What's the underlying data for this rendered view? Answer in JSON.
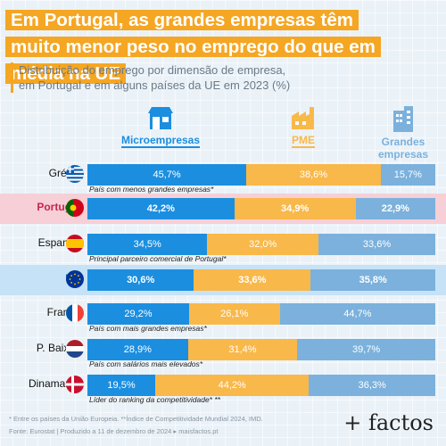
{
  "title": "Em Portugal, as grandes empresas têm muito menor peso no emprego do que em média na UE",
  "subtitle_lines": [
    "Distribuição do emprego por dimensão de empresa,",
    "em Portugal e em alguns países da UE em 2023 (%)"
  ],
  "legend": {
    "micro": "Microempresas",
    "pme": "PME",
    "grandes": "Grandes empresas"
  },
  "colors": {
    "micro": "#1b8ee0",
    "pme": "#f9b84a",
    "grandes": "#7bb1dc",
    "title_bg": "#f5a623"
  },
  "chart_data": {
    "type": "bar",
    "stacked": true,
    "orientation": "horizontal",
    "categories": [
      "Grécia",
      "Portugal",
      "Espanha",
      "UE",
      "França",
      "P. Baixos",
      "Dinamarca"
    ],
    "series": [
      {
        "name": "Microempresas",
        "values": [
          45.7,
          42.2,
          34.5,
          30.6,
          29.2,
          28.9,
          19.5
        ]
      },
      {
        "name": "PME",
        "values": [
          38.6,
          34.9,
          32.0,
          33.6,
          26.1,
          31.4,
          44.2
        ]
      },
      {
        "name": "Grandes empresas",
        "values": [
          15.7,
          22.9,
          33.6,
          35.8,
          44.7,
          39.7,
          36.3
        ]
      }
    ],
    "value_labels": [
      [
        "45,7%",
        "38,6%",
        "15,7%"
      ],
      [
        "42,2%",
        "34,9%",
        "22,9%"
      ],
      [
        "34,5%",
        "32,0%",
        "33,6%"
      ],
      [
        "30,6%",
        "33,6%",
        "35,8%"
      ],
      [
        "29,2%",
        "26,1%",
        "44,7%"
      ],
      [
        "28,9%",
        "31,4%",
        "39,7%"
      ],
      [
        "19,5%",
        "44,2%",
        "36,3%"
      ]
    ],
    "notes": [
      "País com menos grandes empresas*",
      "",
      "Principal parceiro comercial de Portugal*",
      "",
      "País com mais grandes empresas*",
      "País com salários mais elevados*",
      "Líder do ranking da competitividade* **"
    ],
    "highlight": [
      "",
      "pt",
      "",
      "ue",
      "",
      "",
      ""
    ],
    "flags": [
      "greece",
      "portugal",
      "spain",
      "eu",
      "france",
      "netherlands",
      "denmark"
    ]
  },
  "footnotes": [
    "* Entre os países da União Europeia. **Índice de Competitividade Mundial 2024, IMD.",
    "Fonte: Eurostat | Produzido a 11 de dezembro de 2024 ▸ maisfactos.pt"
  ],
  "logo": "+ factos"
}
